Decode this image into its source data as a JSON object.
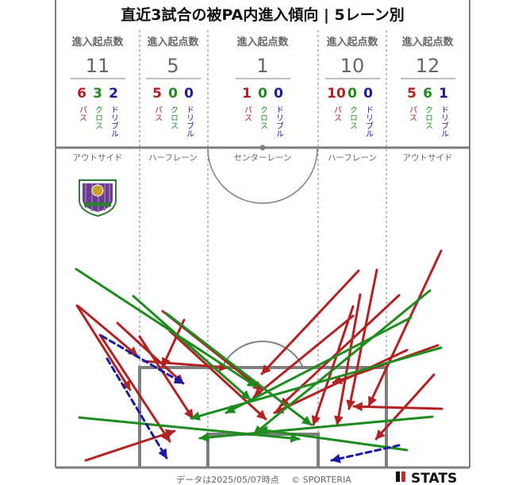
{
  "title": "直近3試合の被PA内進入傾向 | 5レーン別",
  "header_label": "進入起点数",
  "type_labels": {
    "pass": "パス",
    "cross": "クロス",
    "dribble": "ドリブル"
  },
  "colors": {
    "pass": "#b22222",
    "cross": "#1e8c1e",
    "dribble": "#1a1aa6",
    "line": "#7f7f7f",
    "text": "#666666"
  },
  "lanes": [
    {
      "name": "アウトサイド",
      "total": "11",
      "pass": "6",
      "cross": "3",
      "dribble": "2"
    },
    {
      "name": "ハーフレーン",
      "total": "5",
      "pass": "5",
      "cross": "0",
      "dribble": "0"
    },
    {
      "name": "センターレーン",
      "total": "1",
      "pass": "1",
      "cross": "0",
      "dribble": "0"
    },
    {
      "name": "ハーフレーン",
      "total": "10",
      "pass": "10",
      "cross": "0",
      "dribble": "0"
    },
    {
      "name": "アウトサイド",
      "total": "12",
      "pass": "5",
      "cross": "6",
      "dribble": "1"
    }
  ],
  "crest_icon": "team-crest-icon",
  "footer": {
    "note": "データは2025/05/07時点",
    "copyright": "© SPORTERIA",
    "brand": "STATS"
  }
}
